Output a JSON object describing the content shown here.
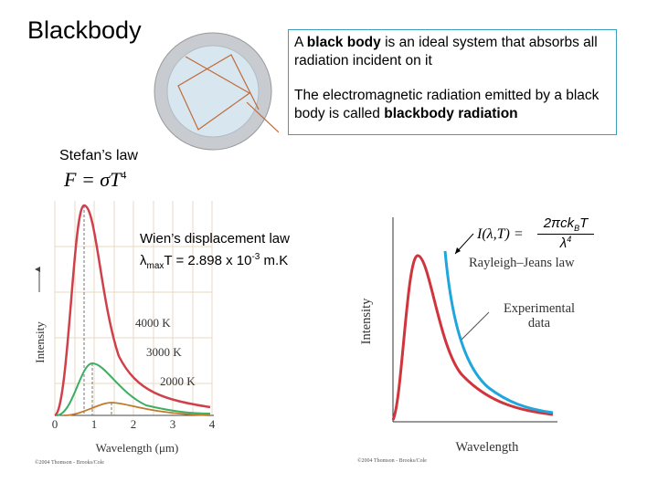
{
  "title": "Blackbody",
  "definition_box": {
    "p1_pre": "A ",
    "p1_bold": "black body",
    "p1_post": " is an ideal system that absorbs all radiation incident on it",
    "p2_pre": "The electromagnetic radiation emitted by a black body is called ",
    "p2_bold": "blackbody radiation"
  },
  "stefan": {
    "label": "Stefan’s law",
    "formula": "F = σT",
    "exponent": "4"
  },
  "wien": {
    "label": "Wien’s displacement law",
    "lambda": "λ",
    "sub": "max",
    "mid": "T = 2.898 x 10",
    "exp": "-3",
    "unit": " m.K"
  },
  "left_chart": {
    "y_label": "Intensity",
    "x_label": "Wavelength (μm)",
    "x_ticks": [
      "0",
      "1",
      "2",
      "3",
      "4"
    ],
    "curve_labels": [
      "4000 K",
      "3000 K",
      "2000 K"
    ],
    "credit": "©2004 Thomson - Brooks/Cole"
  },
  "right_chart": {
    "y_label": "Intensity",
    "x_label": "Wavelength",
    "rj_label": "Rayleigh–Jeans law",
    "exp_label_1": "Experimental",
    "exp_label_2": "data",
    "credit": "©2004 Thomson - Brooks/Cole",
    "formula": {
      "lhs": "I(λ,T) =",
      "num": "2πck",
      "num_sub": "B",
      "num_end": "T",
      "den": "λ",
      "den_exp": "4"
    }
  }
}
